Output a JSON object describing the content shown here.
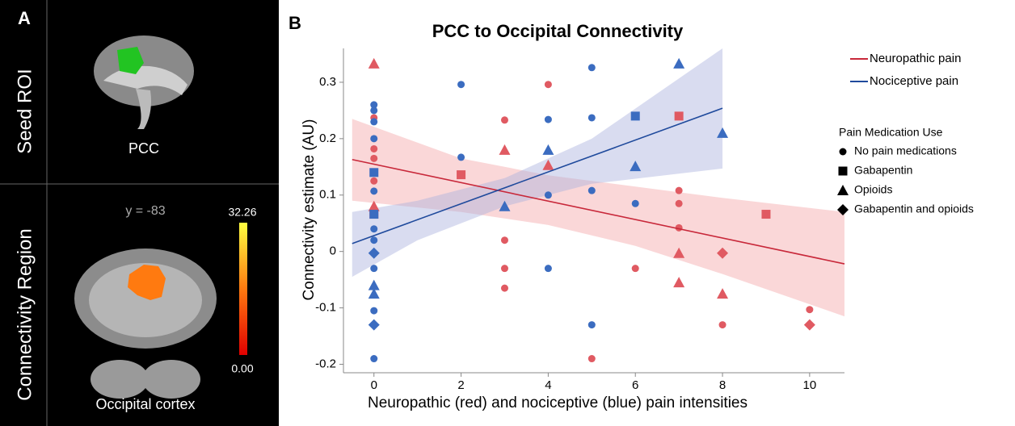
{
  "panel_a": {
    "label": "A",
    "seed_label": "Seed ROI",
    "seed_name": "PCC",
    "region_label": "Connectivity Region",
    "slice": "y = -83",
    "colorbar_max": "32.26",
    "colorbar_min": "0.00",
    "region_name": "Occipital cortex"
  },
  "chart_data": {
    "type": "scatter",
    "panel_label": "B",
    "title": "PCC to Occipital Connectivity",
    "x_label": "Neuropathic (red) and nociceptive (blue) pain intensities",
    "y_label": "Connectivity estimate (AU)",
    "xlim": [
      -0.7,
      10.8
    ],
    "ylim": [
      -0.215,
      0.36
    ],
    "xticks": [
      0,
      2,
      4,
      6,
      8,
      10
    ],
    "yticks": [
      -0.2,
      -0.1,
      0,
      0.1,
      0.2,
      0.3
    ],
    "series": [
      {
        "name": "Neuropathic pain",
        "color": "#c8283a",
        "point_color": "#e05a62",
        "band_color": "#f4a6a8",
        "x": [
          0,
          0,
          0,
          0,
          0,
          0,
          0,
          2,
          3,
          3,
          3,
          3,
          3,
          4,
          4,
          5,
          6,
          7,
          7,
          7,
          7,
          7,
          7,
          8,
          8,
          8,
          9,
          10,
          10
        ],
        "values": [
          0.333,
          0.237,
          0.182,
          0.165,
          0.125,
          0.08,
          0.066,
          0.136,
          0.18,
          0.233,
          0.02,
          -0.03,
          -0.065,
          0.296,
          0.153,
          -0.19,
          -0.03,
          0.24,
          0.108,
          0.085,
          0.042,
          -0.003,
          -0.055,
          -0.003,
          -0.075,
          -0.13,
          0.066,
          -0.103,
          -0.13
        ],
        "markers": [
          "^",
          "o",
          "o",
          "o",
          "o",
          "^",
          "s",
          "s",
          "^",
          "o",
          "o",
          "o",
          "o",
          "o",
          "^",
          "o",
          "o",
          "s",
          "o",
          "o",
          "o",
          "^",
          "^",
          "D",
          "^",
          "o",
          "s",
          "o",
          "D"
        ],
        "fit": {
          "x": [
            -0.5,
            10.8
          ],
          "values": [
            0.163,
            -0.022
          ]
        },
        "band": {
          "x": [
            -0.5,
            2,
            4,
            6,
            8,
            10.8
          ],
          "upper": [
            0.235,
            0.165,
            0.135,
            0.115,
            0.095,
            0.07
          ],
          "lower": [
            0.09,
            0.07,
            0.047,
            0.01,
            -0.04,
            -0.115
          ]
        }
      },
      {
        "name": "Nociceptive pain",
        "color": "#1f4a9c",
        "point_color": "#3b6cc0",
        "band_color": "#aab2dd",
        "x": [
          0,
          0,
          0,
          0,
          0,
          0,
          0,
          0,
          0,
          0,
          0,
          0,
          0,
          0,
          0,
          0,
          2,
          2,
          3,
          4,
          4,
          4,
          4,
          5,
          5,
          5,
          5,
          6,
          6,
          6,
          7,
          8
        ],
        "values": [
          0.26,
          0.25,
          0.23,
          0.2,
          0.14,
          0.107,
          0.066,
          0.04,
          0.02,
          -0.003,
          -0.03,
          -0.06,
          -0.075,
          -0.105,
          -0.13,
          -0.19,
          0.296,
          0.167,
          0.08,
          0.234,
          0.18,
          0.1,
          -0.03,
          0.326,
          0.237,
          0.108,
          -0.13,
          0.24,
          0.151,
          0.085,
          0.333,
          0.21
        ],
        "markers": [
          "o",
          "o",
          "o",
          "o",
          "s",
          "o",
          "s",
          "o",
          "o",
          "D",
          "o",
          "^",
          "^",
          "o",
          "D",
          "o",
          "o",
          "o",
          "^",
          "o",
          "^",
          "o",
          "o",
          "o",
          "o",
          "o",
          "o",
          "s",
          "^",
          "o",
          "^",
          "^"
        ],
        "fit": {
          "x": [
            -0.5,
            8
          ],
          "values": [
            0.014,
            0.254
          ]
        },
        "band": {
          "x": [
            -0.5,
            1,
            3,
            5,
            8
          ],
          "upper": [
            0.07,
            0.09,
            0.13,
            0.2,
            0.36
          ],
          "lower": [
            -0.045,
            0.02,
            0.08,
            0.12,
            0.147
          ]
        }
      }
    ],
    "legend": "right",
    "marker_legend": {
      "title": "Pain Medication Use",
      "items": [
        {
          "label": "No pain medications",
          "marker": "o"
        },
        {
          "label": "Gabapentin",
          "marker": "s"
        },
        {
          "label": "Opioids",
          "marker": "^"
        },
        {
          "label": "Gabapentin and opioids",
          "marker": "D"
        }
      ]
    }
  }
}
